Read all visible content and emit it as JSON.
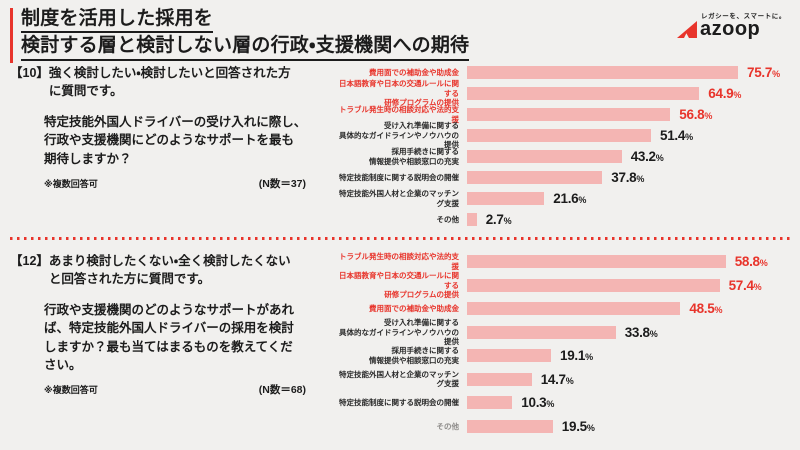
{
  "header": {
    "title_line1": "制度を活用した採用を",
    "title_line2": "検討する層と検討しない層の行政・支援機関への期待",
    "logo": {
      "tagline": "レガシーを、スマートに。",
      "wordmark": "azoop"
    }
  },
  "colors": {
    "accent_red": "#E8342B",
    "bar_pink": "#F4B5B3",
    "text_dark": "#1C1C1C",
    "background": "#F1F0EE"
  },
  "sections": [
    {
      "number": "【10】",
      "intro": "強く検討したい・検討したいと回答された方\nに質問です。",
      "question": "特定技能外国人ドライバーの受け入れに際し、\n行政や支援機関にどのようなサポートを最も\n期待しますか？",
      "note": "※複数回答可",
      "n_label": "(N数＝37)"
    },
    {
      "number": "【12】",
      "intro": "あまり検討したくない・全く検討したくない\nと回答された方に質問です。",
      "question": "行政や支援機関のどのようなサポートがあれ\nば、特定技能外国人ドライバーの採用を検討\nしますか？最も当てはまるものを教えてくだ\nさい。",
      "note": "※複数回答可",
      "n_label": "(N数＝68)"
    }
  ],
  "chart_data": [
    {
      "type": "bar",
      "orientation": "horizontal",
      "unit": "%",
      "n": 37,
      "title": "【10】特定技能外国人ドライバーの受け入れに際し、行政や支援機関にどのようなサポートを最も期待しますか？",
      "categories": [
        "費用面での補助金や助成金",
        "日本語教育や日本の交通ルールに関する\n研修プログラムの提供",
        "トラブル発生時の相談対応や法的支援",
        "受け入れ準備に関する\n具体的なガイドラインやノウハウの提供",
        "採用手続きに関する\n情報提供や相談窓口の充実",
        "特定技能制度に関する説明会の開催",
        "特定技能外国人材と企業のマッチング支援",
        "その他"
      ],
      "values": [
        75.7,
        64.9,
        56.8,
        51.4,
        43.2,
        37.8,
        21.6,
        2.7
      ],
      "highlighted": [
        true,
        true,
        true,
        false,
        false,
        false,
        false,
        false
      ],
      "muted": [
        false,
        false,
        false,
        false,
        false,
        false,
        false,
        false
      ],
      "xlim": [
        0,
        80
      ],
      "grid": false,
      "legend": false
    },
    {
      "type": "bar",
      "orientation": "horizontal",
      "unit": "%",
      "n": 68,
      "title": "【12】行政や支援機関のどのようなサポートがあれば、特定技能外国人ドライバーの採用を検討しますか？",
      "categories": [
        "トラブル発生時の相談対応や法的支援",
        "日本語教育や日本の交通ルールに関する\n研修プログラムの提供",
        "費用面での補助金や助成金",
        "受け入れ準備に関する\n具体的なガイドラインやノウハウの提供",
        "採用手続きに関する\n情報提供や相談窓口の充実",
        "特定技能外国人材と企業のマッチング支援",
        "特定技能制度に関する説明会の開催",
        "その他"
      ],
      "values": [
        58.8,
        57.4,
        48.5,
        33.8,
        19.1,
        14.7,
        10.3,
        19.5
      ],
      "highlighted": [
        true,
        true,
        true,
        false,
        false,
        false,
        false,
        false
      ],
      "muted": [
        false,
        false,
        false,
        false,
        false,
        false,
        false,
        true
      ],
      "xlim": [
        0,
        65
      ],
      "grid": false,
      "legend": false
    }
  ]
}
